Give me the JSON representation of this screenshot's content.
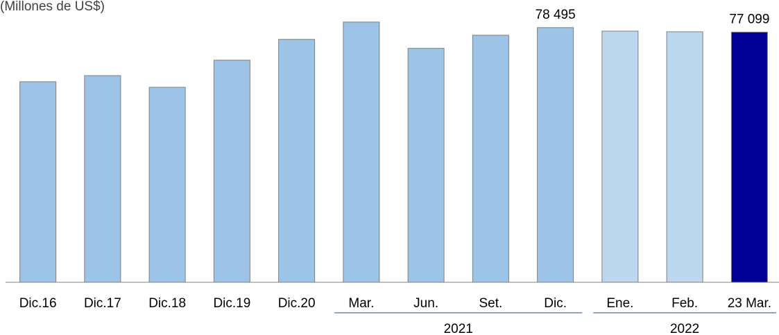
{
  "chart_data": {
    "type": "bar",
    "subtitle": "(Millones de US$)",
    "categories": [
      "Dic.16",
      "Dic.17",
      "Dic.18",
      "Dic.19",
      "Dic.20",
      "Mar.",
      "Jun.",
      "Set.",
      "Dic.",
      "Ene.",
      "Feb.",
      "23 Mar."
    ],
    "values": [
      61800,
      63700,
      60100,
      68450,
      74870,
      80200,
      72100,
      76150,
      78495,
      77400,
      77200,
      77099
    ],
    "value_labels": [
      null,
      null,
      null,
      null,
      null,
      null,
      null,
      null,
      "78 495",
      null,
      null,
      "77 099"
    ],
    "colors": [
      "#9dc3e6",
      "#9dc3e6",
      "#9dc3e6",
      "#9dc3e6",
      "#9dc3e6",
      "#9dc3e6",
      "#9dc3e6",
      "#9dc3e6",
      "#9dc3e6",
      "#bdd7ee",
      "#bdd7ee",
      "#000099"
    ],
    "groups": [
      {
        "label": "2021",
        "start": 5,
        "end": 8
      },
      {
        "label": "2022",
        "start": 9,
        "end": 11
      }
    ],
    "ylim": [
      0,
      87000
    ]
  }
}
